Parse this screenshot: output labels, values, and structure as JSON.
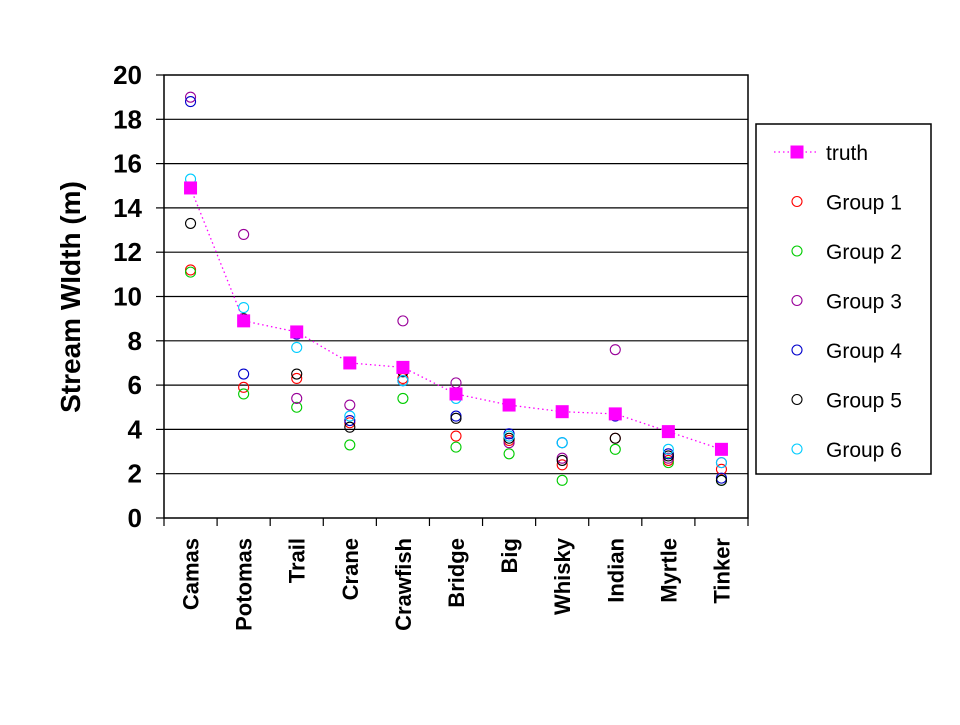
{
  "chart_data": {
    "type": "scatter",
    "title": "",
    "xlabel": "",
    "ylabel": "Stream WIdth (m)",
    "ylim": [
      0,
      20
    ],
    "ytick_step": 2,
    "grid": "horizontal",
    "legend_position": "right",
    "categories": [
      "Camas",
      "Potomas",
      "Trail",
      "Crane",
      "Crawfish",
      "Bridge",
      "Big",
      "Whisky",
      "Indian",
      "Myrtle",
      "Tinker"
    ],
    "series": [
      {
        "name": "truth",
        "color": "#ff00ff",
        "marker": "filled-square",
        "line": "dotted",
        "values": [
          14.9,
          8.9,
          8.4,
          7.0,
          6.8,
          5.6,
          5.1,
          4.8,
          4.7,
          3.9,
          3.1
        ]
      },
      {
        "name": "Group 1",
        "color": "#ff0000",
        "marker": "open-circle",
        "values": [
          11.2,
          5.9,
          6.3,
          4.3,
          6.3,
          3.7,
          3.5,
          2.4,
          3.6,
          2.6,
          2.2
        ]
      },
      {
        "name": "Group 2",
        "color": "#00cc00",
        "marker": "open-circle",
        "values": [
          11.1,
          5.6,
          5.0,
          3.3,
          5.4,
          3.2,
          2.9,
          1.7,
          3.1,
          2.5,
          1.7
        ]
      },
      {
        "name": "Group 3",
        "color": "#990099",
        "marker": "open-circle",
        "values": [
          19.0,
          12.8,
          5.4,
          5.1,
          8.9,
          6.1,
          3.4,
          2.7,
          7.6,
          2.7,
          2.5
        ]
      },
      {
        "name": "Group 4",
        "color": "#0000cc",
        "marker": "open-circle",
        "values": [
          18.8,
          6.5,
          8.3,
          4.4,
          6.2,
          4.6,
          3.8,
          3.4,
          4.6,
          2.9,
          1.8
        ]
      },
      {
        "name": "Group 5",
        "color": "#000000",
        "marker": "open-circle",
        "values": [
          13.3,
          9.0,
          6.5,
          4.1,
          6.6,
          4.5,
          3.6,
          2.6,
          3.6,
          2.8,
          1.7
        ]
      },
      {
        "name": "Group 6",
        "color": "#00ccff",
        "marker": "open-circle",
        "values": [
          15.3,
          9.5,
          7.7,
          4.6,
          6.2,
          5.4,
          3.7,
          3.4,
          4.7,
          3.1,
          2.5
        ]
      }
    ]
  }
}
